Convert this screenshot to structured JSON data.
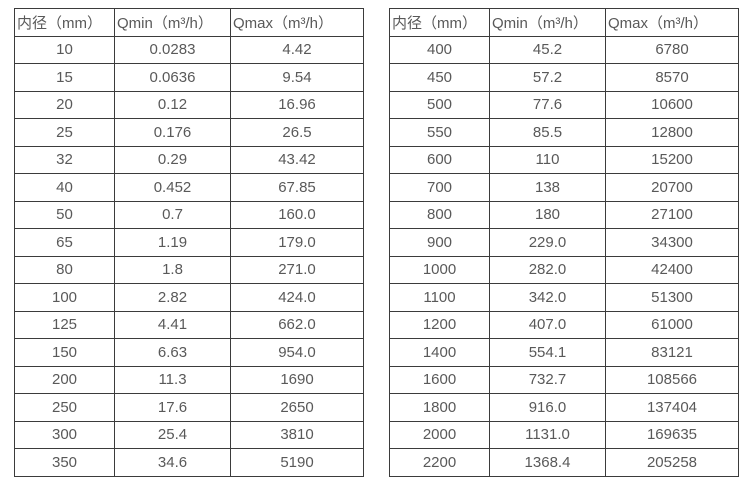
{
  "page": {
    "background_color": "#ffffff",
    "text_color": "#595959",
    "border_color": "#3b3b3b"
  },
  "tables": [
    {
      "name": "flow-range-table-small-diameters",
      "headers": [
        "内径（mm）",
        "Qmin（m³/h）",
        "Qmax（m³/h）"
      ],
      "rows": [
        [
          "10",
          "0.0283",
          "4.42"
        ],
        [
          "15",
          "0.0636",
          "9.54"
        ],
        [
          "20",
          "0.12",
          "16.96"
        ],
        [
          "25",
          "0.176",
          "26.5"
        ],
        [
          "32",
          "0.29",
          "43.42"
        ],
        [
          "40",
          "0.452",
          "67.85"
        ],
        [
          "50",
          "0.7",
          "160.0"
        ],
        [
          "65",
          "1.19",
          "179.0"
        ],
        [
          "80",
          "1.8",
          "271.0"
        ],
        [
          "100",
          "2.82",
          "424.0"
        ],
        [
          "125",
          "4.41",
          "662.0"
        ],
        [
          "150",
          "6.63",
          "954.0"
        ],
        [
          "200",
          "11.3",
          "1690"
        ],
        [
          "250",
          "17.6",
          "2650"
        ],
        [
          "300",
          "25.4",
          "3810"
        ],
        [
          "350",
          "34.6",
          "5190"
        ]
      ]
    },
    {
      "name": "flow-range-table-large-diameters",
      "headers": [
        "内径（mm）",
        "Qmin（m³/h）",
        "Qmax（m³/h）"
      ],
      "rows": [
        [
          "400",
          "45.2",
          "6780"
        ],
        [
          "450",
          "57.2",
          "8570"
        ],
        [
          "500",
          "77.6",
          "10600"
        ],
        [
          "550",
          "85.5",
          "12800"
        ],
        [
          "600",
          "110",
          "15200"
        ],
        [
          "700",
          "138",
          "20700"
        ],
        [
          "800",
          "180",
          "27100"
        ],
        [
          "900",
          "229.0",
          "34300"
        ],
        [
          "1000",
          "282.0",
          "42400"
        ],
        [
          "1100",
          "342.0",
          "51300"
        ],
        [
          "1200",
          "407.0",
          "61000"
        ],
        [
          "1400",
          "554.1",
          "83121"
        ],
        [
          "1600",
          "732.7",
          "108566"
        ],
        [
          "1800",
          "916.0",
          "137404"
        ],
        [
          "2000",
          "1131.0",
          "169635"
        ],
        [
          "2200",
          "1368.4",
          "205258"
        ]
      ]
    }
  ]
}
